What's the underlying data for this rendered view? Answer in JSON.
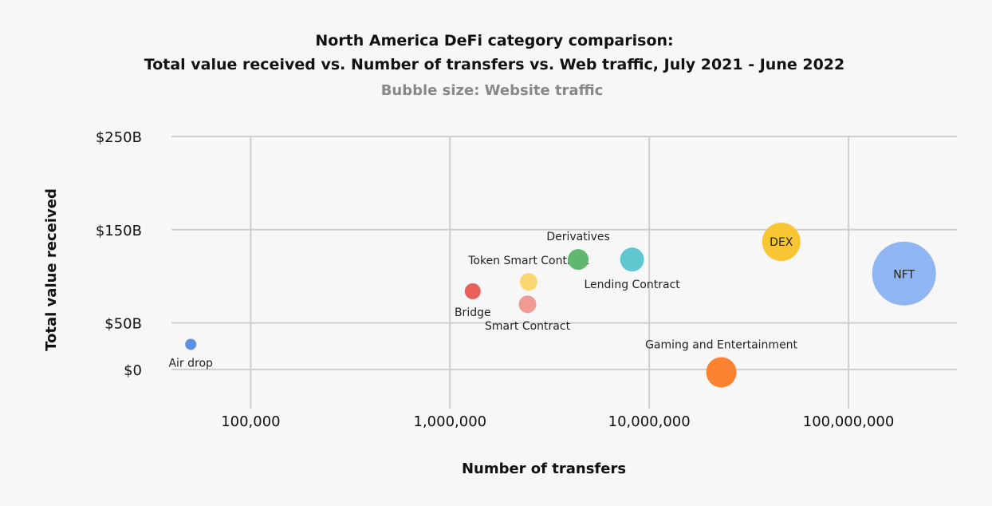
{
  "chart_data": {
    "type": "scatter",
    "title_line1": "North America DeFi category comparison:",
    "title_line2": "Total value received vs. Number of transfers vs. Web traffic, July 2021 - June 2022",
    "subtitle": "Bubble size: Website traffic",
    "xlabel": "Number of transfers",
    "ylabel": "Total value received",
    "x_scale": "log",
    "xlim": [
      40000,
      350000000
    ],
    "ylim": [
      0,
      250
    ],
    "x_ticks": [
      {
        "value": 100000,
        "label": "100,000"
      },
      {
        "value": 1000000,
        "label": "1,000,000"
      },
      {
        "value": 10000000,
        "label": "10,000,000"
      },
      {
        "value": 100000000,
        "label": "100,000,000"
      }
    ],
    "y_ticks": [
      {
        "value": 0,
        "label": "$0"
      },
      {
        "value": 50,
        "label": "$50B"
      },
      {
        "value": 150,
        "label": "$150B"
      },
      {
        "value": 250,
        "label": "$250B"
      }
    ],
    "grid": true,
    "points": [
      {
        "name": "Air drop",
        "x": 50000,
        "y": 27,
        "size": 7,
        "color": "#5b8fe8",
        "label_pos": "below"
      },
      {
        "name": "Bridge",
        "x": 1300000,
        "y": 84,
        "size": 10,
        "color": "#e8605a",
        "label_pos": "below"
      },
      {
        "name": "Smart Contract",
        "x": 2450000,
        "y": 70,
        "size": 11,
        "color": "#f19a93",
        "label_pos": "below"
      },
      {
        "name": "Token Smart Contract",
        "x": 2480000,
        "y": 94,
        "size": 11,
        "color": "#fbd774",
        "label_pos": "above"
      },
      {
        "name": "Derivatives",
        "x": 4400000,
        "y": 118,
        "size": 13,
        "color": "#5fb86d",
        "label_pos": "above"
      },
      {
        "name": "Lending Contract",
        "x": 8200000,
        "y": 118,
        "size": 15,
        "color": "#5ec7cf",
        "label_pos": "below"
      },
      {
        "name": "DEX",
        "x": 46000000,
        "y": 137,
        "size": 24,
        "color": "#f8c534",
        "label_pos": "inside"
      },
      {
        "name": "NFT",
        "x": 190000000,
        "y": 103,
        "size": 40,
        "color": "#8fb5f2",
        "label_pos": "inside"
      },
      {
        "name": "Gaming and Entertainment",
        "x": 23000000,
        "y": -3,
        "size": 19,
        "color": "#fa8230",
        "label_pos": "above"
      }
    ]
  }
}
